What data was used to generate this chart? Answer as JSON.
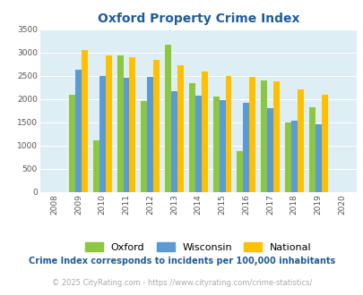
{
  "title": "Oxford Property Crime Index",
  "years": [
    2008,
    2009,
    2010,
    2011,
    2012,
    2013,
    2014,
    2015,
    2016,
    2017,
    2018,
    2019,
    2020
  ],
  "oxford": [
    null,
    2100,
    1100,
    2950,
    1950,
    3175,
    2350,
    2050,
    875,
    2400,
    1500,
    1825,
    null
  ],
  "wisconsin": [
    null,
    2625,
    2500,
    2450,
    2475,
    2175,
    2075,
    1975,
    1925,
    1800,
    1525,
    1450,
    null
  ],
  "national": [
    null,
    3050,
    2950,
    2900,
    2850,
    2725,
    2600,
    2500,
    2475,
    2375,
    2200,
    2100,
    null
  ],
  "oxford_color": "#8dc63f",
  "wisconsin_color": "#5b9bd5",
  "national_color": "#ffc000",
  "bg_color": "#ddeef5",
  "ylim": [
    0,
    3500
  ],
  "yticks": [
    0,
    500,
    1000,
    1500,
    2000,
    2500,
    3000,
    3500
  ],
  "legend_labels": [
    "Oxford",
    "Wisconsin",
    "National"
  ],
  "footnote1": "Crime Index corresponds to incidents per 100,000 inhabitants",
  "footnote2": "© 2025 CityRating.com - https://www.cityrating.com/crime-statistics/",
  "title_color": "#1f5c99",
  "footnote1_color": "#1f5c99",
  "footnote2_color": "#aaaaaa"
}
